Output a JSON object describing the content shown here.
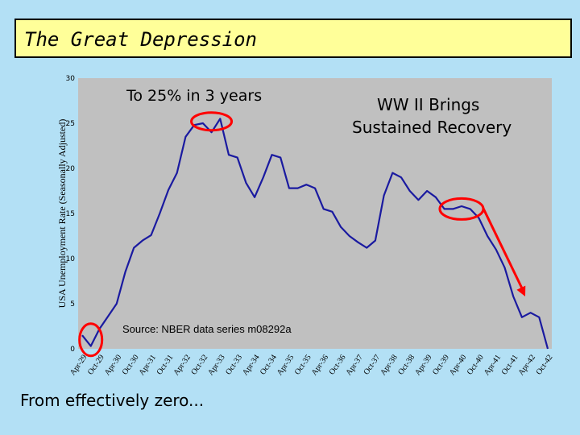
{
  "slide": {
    "title": "The Great Depression",
    "note_peak": "To 25% in 3 years",
    "note_ww2_line1": "WW II Brings",
    "note_ww2_line2": "Sustained Recovery",
    "note_zero": "From effectively zero..."
  },
  "colors": {
    "background": "#b3e0f5",
    "title_fill": "#ffff99",
    "plot_bg": "#c0c0c0",
    "line": "#1a1aa0",
    "highlight": "#ff0000"
  },
  "chart_data": {
    "type": "line",
    "ylabel": "USA Unemployment Rate (Seasonally Adjusted)",
    "source_label": "Source: NBER data series m08292a",
    "ylim": [
      0,
      30
    ],
    "yticks": [
      0,
      5,
      10,
      15,
      20,
      25,
      30
    ],
    "grid": false,
    "xticks": [
      "Apr-29",
      "Oct-29",
      "Apr-30",
      "Oct-30",
      "Apr-31",
      "Oct-31",
      "Apr-32",
      "Oct-32",
      "Apr-33",
      "Oct-33",
      "Apr-34",
      "Oct-34",
      "Apr-35",
      "Oct-35",
      "Apr-36",
      "Oct-36",
      "Apr-37",
      "Oct-37",
      "Apr-38",
      "Oct-38",
      "Apr-39",
      "Oct-39",
      "Apr-40",
      "Oct-40",
      "Apr-41",
      "Oct-41",
      "Apr-42",
      "Oct-42"
    ],
    "x": [
      "Apr-29",
      "Jul-29",
      "Oct-29",
      "Jan-30",
      "Apr-30",
      "Jul-30",
      "Oct-30",
      "Jan-31",
      "Apr-31",
      "Jul-31",
      "Oct-31",
      "Jan-32",
      "Apr-32",
      "Jul-32",
      "Oct-32",
      "Jan-33",
      "Apr-33",
      "Jul-33",
      "Oct-33",
      "Jan-34",
      "Apr-34",
      "Jul-34",
      "Oct-34",
      "Jan-35",
      "Apr-35",
      "Jul-35",
      "Oct-35",
      "Jan-36",
      "Apr-36",
      "Jul-36",
      "Oct-36",
      "Jan-37",
      "Apr-37",
      "Jul-37",
      "Oct-37",
      "Jan-38",
      "Apr-38",
      "Jul-38",
      "Oct-38",
      "Jan-39",
      "Apr-39",
      "Jul-39",
      "Oct-39",
      "Jan-40",
      "Apr-40",
      "Jul-40",
      "Oct-40",
      "Jan-41",
      "Apr-41",
      "Jul-41",
      "Oct-41",
      "Jan-42",
      "Apr-42",
      "Jul-42",
      "Oct-42"
    ],
    "series": [
      {
        "values": [
          1.5,
          0.3,
          2.2,
          3.6,
          5.0,
          8.5,
          11.2,
          12.0,
          12.6,
          15.0,
          17.6,
          19.5,
          23.5,
          24.8,
          25.0,
          24.0,
          25.5,
          21.5,
          21.2,
          18.4,
          16.8,
          19.0,
          21.5,
          21.2,
          17.8,
          17.8,
          18.2,
          17.8,
          15.5,
          15.2,
          13.5,
          12.5,
          11.8,
          11.2,
          12.0,
          17.0,
          19.5,
          19.0,
          17.5,
          16.5,
          17.5,
          16.8,
          15.5,
          15.5,
          15.8,
          15.5,
          14.5,
          12.5,
          11.0,
          9.0,
          5.8,
          3.5,
          4.0,
          3.5,
          0.0
        ]
      }
    ]
  }
}
